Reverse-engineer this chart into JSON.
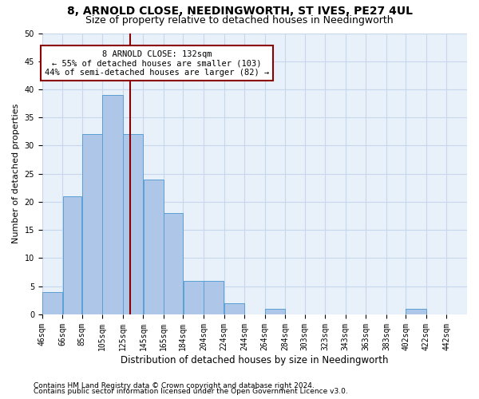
{
  "title": "8, ARNOLD CLOSE, NEEDINGWORTH, ST IVES, PE27 4UL",
  "subtitle": "Size of property relative to detached houses in Needingworth",
  "xlabel": "Distribution of detached houses by size in Needingworth",
  "ylabel": "Number of detached properties",
  "footnote1": "Contains HM Land Registry data © Crown copyright and database right 2024.",
  "footnote2": "Contains public sector information licensed under the Open Government Licence v3.0.",
  "annotation_title": "8 ARNOLD CLOSE: 132sqm",
  "annotation_line1": "← 55% of detached houses are smaller (103)",
  "annotation_line2": "44% of semi-detached houses are larger (82) →",
  "property_size": 132,
  "bar_left_edges": [
    46,
    66,
    85,
    105,
    125,
    145,
    165,
    184,
    204,
    224,
    244,
    264,
    284,
    303,
    323,
    343,
    363,
    383,
    402,
    422
  ],
  "bar_widths": [
    20,
    19,
    20,
    20,
    20,
    20,
    19,
    20,
    20,
    20,
    20,
    20,
    19,
    20,
    20,
    20,
    20,
    19,
    20,
    20
  ],
  "bar_heights": [
    4,
    21,
    32,
    39,
    32,
    24,
    18,
    6,
    6,
    2,
    0,
    1,
    0,
    0,
    0,
    0,
    0,
    0,
    1,
    0
  ],
  "bar_color": "#aec6e8",
  "bar_edge_color": "#5a9fd4",
  "tick_labels": [
    "46sqm",
    "66sqm",
    "85sqm",
    "105sqm",
    "125sqm",
    "145sqm",
    "165sqm",
    "184sqm",
    "204sqm",
    "224sqm",
    "244sqm",
    "264sqm",
    "284sqm",
    "303sqm",
    "323sqm",
    "343sqm",
    "363sqm",
    "383sqm",
    "402sqm",
    "422sqm",
    "442sqm"
  ],
  "vline_x": 132,
  "vline_color": "#8b0000",
  "annotation_box_color": "#8b0000",
  "ylim": [
    0,
    50
  ],
  "yticks": [
    0,
    5,
    10,
    15,
    20,
    25,
    30,
    35,
    40,
    45,
    50
  ],
  "grid_color": "#c8d8ec",
  "bg_color": "#e8f0fa",
  "title_fontsize": 10,
  "subtitle_fontsize": 9,
  "ylabel_fontsize": 8,
  "xlabel_fontsize": 8.5,
  "tick_fontsize": 7,
  "annotation_fontsize": 7.5,
  "footnote_fontsize": 6.5
}
